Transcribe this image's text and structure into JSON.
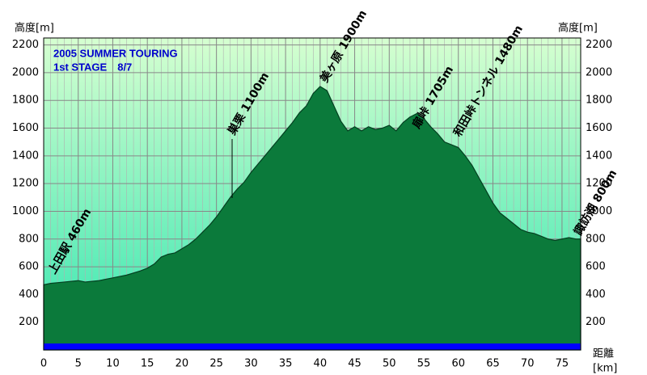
{
  "chart_data": {
    "type": "area",
    "title": "2005 SUMMER TOURING",
    "subtitle": "1st STAGE　8/7",
    "y_label": "高度[m]",
    "x_label_1": "距離",
    "x_label_2": "[km]",
    "annotations": [
      "上田駅 460m",
      "巣栗 1100m",
      "美ヶ原 1900m",
      "扉峠 1705m",
      "和田峠トンネル 1480m",
      "諏訪湖 800m"
    ],
    "x": [
      0,
      1,
      3,
      5,
      6,
      8,
      10,
      12,
      14,
      15,
      16,
      17,
      18,
      19,
      20,
      21,
      22,
      23,
      24,
      25,
      26,
      27,
      28,
      29,
      30,
      31,
      32,
      33,
      34,
      35,
      36,
      37,
      38,
      39,
      40,
      41,
      42,
      43,
      44,
      45,
      46,
      47,
      48,
      49,
      50,
      51,
      52,
      53,
      54,
      55,
      56,
      57,
      58,
      59,
      60,
      61,
      62,
      63,
      64,
      65,
      66,
      67,
      68,
      69,
      70,
      71,
      72,
      73,
      74,
      75,
      76,
      77,
      77.7
    ],
    "values": [
      470,
      480,
      490,
      500,
      490,
      500,
      520,
      540,
      570,
      590,
      620,
      670,
      690,
      700,
      730,
      760,
      800,
      850,
      900,
      960,
      1030,
      1100,
      1160,
      1210,
      1280,
      1340,
      1400,
      1460,
      1520,
      1580,
      1640,
      1710,
      1760,
      1850,
      1900,
      1870,
      1760,
      1650,
      1580,
      1610,
      1580,
      1610,
      1590,
      1600,
      1620,
      1580,
      1640,
      1680,
      1705,
      1670,
      1610,
      1560,
      1500,
      1480,
      1460,
      1400,
      1330,
      1240,
      1150,
      1060,
      990,
      950,
      910,
      870,
      850,
      840,
      820,
      800,
      790,
      800,
      810,
      800,
      800
    ],
    "color": "#0b7a3b",
    "xlim": [
      0,
      77.7
    ],
    "ylim": [
      0,
      2250
    ],
    "xticks": [
      0,
      5,
      10,
      15,
      20,
      25,
      30,
      35,
      40,
      45,
      50,
      55,
      60,
      65,
      70,
      75
    ],
    "yticks": [
      200,
      400,
      600,
      800,
      1000,
      1200,
      1400,
      1600,
      1800,
      2000,
      2200
    ],
    "xminorticks": [
      1,
      2,
      3,
      4,
      6,
      7,
      8,
      9,
      11,
      12,
      13,
      14,
      16,
      17,
      18,
      19,
      21,
      22,
      23,
      24,
      26,
      27,
      28,
      29,
      31,
      32,
      33,
      34,
      36,
      37,
      38,
      39,
      41,
      42,
      43,
      44,
      46,
      47,
      48,
      49,
      51,
      52,
      53,
      54,
      56,
      57,
      58,
      59,
      61,
      62,
      63,
      64,
      66,
      67,
      68,
      69,
      71,
      72,
      73,
      74,
      76,
      77
    ],
    "grid": true
  }
}
